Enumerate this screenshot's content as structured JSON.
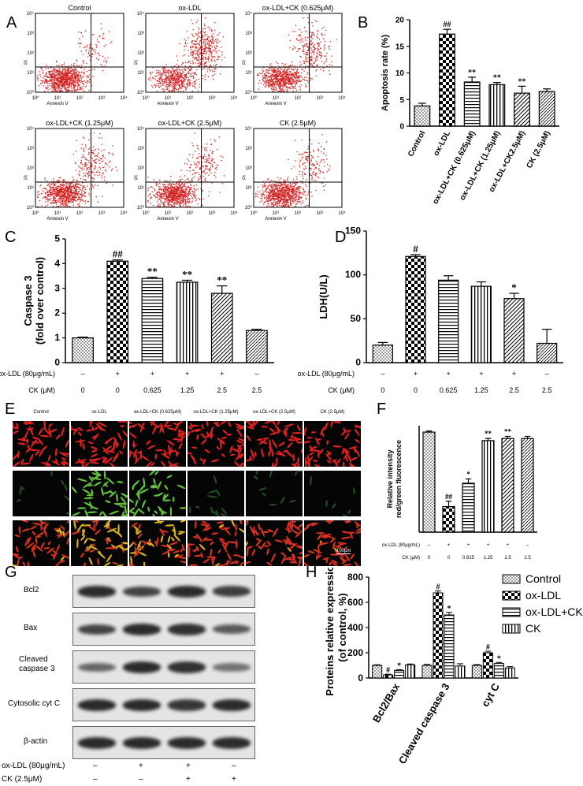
{
  "panels": {
    "A": "A",
    "B": "B",
    "C": "C",
    "D": "D",
    "E": "E",
    "F": "F",
    "G": "G",
    "H": "H"
  },
  "flow": {
    "titles": [
      "Control",
      "ox-LDL",
      "ox-LDL+CK (0.625μM)",
      "ox-LDL+CK (1.25μM)",
      "ox-LDL+CK (2.5μM)",
      "CK (2.5μM)"
    ],
    "xlabel": "Annexin V",
    "ylabel": "PI",
    "ticks": [
      "10⁰",
      "10¹",
      "10²",
      "10³",
      "10⁴"
    ],
    "point_color": "#d42020"
  },
  "chart_data": [
    {
      "type": "bar",
      "panel": "B",
      "categories": [
        "Control",
        "ox-LDL",
        "ox-LDL+CK (0.625μM)",
        "ox-LDL+CK (1.25μM)",
        "ox-LDL+CK2.5μM)",
        "CK (2.5μM)"
      ],
      "values": [
        3.8,
        17.3,
        8.3,
        7.8,
        6.2,
        6.5
      ],
      "errors": [
        0.5,
        0.9,
        0.9,
        0.4,
        1.3,
        0.5
      ],
      "annotations": [
        "",
        "##",
        "**",
        "**",
        "**",
        ""
      ],
      "ylabel": "Apoptosis rate (%)",
      "ylim": [
        0,
        20
      ],
      "yticks": [
        "0",
        "5",
        "10",
        "15",
        "20"
      ]
    },
    {
      "type": "bar",
      "panel": "C",
      "categories": [
        "1",
        "2",
        "3",
        "4",
        "5",
        "6"
      ],
      "values": [
        1.0,
        4.1,
        3.4,
        3.25,
        2.8,
        1.3
      ],
      "errors": [
        0.03,
        0.05,
        0.05,
        0.08,
        0.3,
        0.05
      ],
      "annotations": [
        "",
        "##",
        "**",
        "**",
        "**",
        ""
      ],
      "ylabel": "Caspase 3",
      "ylabel2": "(fold over control)",
      "ylim": [
        0,
        5
      ],
      "yticks": [
        "0",
        "1",
        "2",
        "3",
        "4",
        "5"
      ],
      "row1_label": "ox-LDL (80μg/mL)",
      "row1": [
        "–",
        "+",
        "+",
        "+",
        "+",
        "–"
      ],
      "row2_label": "CK (μM)",
      "row2": [
        "0",
        "0",
        "0.625",
        "1.25",
        "2.5",
        "2.5"
      ]
    },
    {
      "type": "bar",
      "panel": "D",
      "categories": [
        "1",
        "2",
        "3",
        "4",
        "5",
        "6"
      ],
      "values": [
        20,
        121,
        94,
        87,
        73,
        22
      ],
      "errors": [
        3,
        2,
        5,
        5,
        6,
        16
      ],
      "annotations": [
        "",
        "#",
        "",
        "",
        "*",
        ""
      ],
      "ylabel": "LDH(U/L)",
      "ylim": [
        0,
        150
      ],
      "yticks": [
        "0",
        "50",
        "100",
        "150"
      ],
      "row1_label": "ox-LDL (80μg/mL)",
      "row1": [
        "–",
        "+",
        "+",
        "+",
        "+",
        "–"
      ],
      "row2_label": "CK (μM)",
      "row2": [
        "0",
        "0",
        "0.625",
        "1.25",
        "2.5",
        "2.5"
      ]
    },
    {
      "type": "bar",
      "panel": "F",
      "categories": [
        "1",
        "2",
        "3",
        "4",
        "5",
        "6"
      ],
      "values": [
        4.7,
        1.2,
        2.3,
        4.3,
        4.4,
        4.4
      ],
      "errors": [
        0.05,
        0.25,
        0.2,
        0.1,
        0.1,
        0.1
      ],
      "annotations": [
        "",
        "##",
        "*",
        "**",
        "**",
        ""
      ],
      "ylabel": "Relative intensity",
      "ylabel2": "red/green fluorescence",
      "ylim": [
        0,
        5
      ],
      "row1_label": "ox-LDL (80μg/mL)",
      "row1": [
        "–",
        "+",
        "+",
        "+",
        "+",
        "–"
      ],
      "row2_label": "CK (μM)",
      "row2": [
        "0",
        "0",
        "0.625",
        "1.25",
        "2.5",
        "2.5"
      ]
    },
    {
      "type": "bar",
      "panel": "H",
      "categories": [
        "Bcl2/Bax",
        "Cleaved caspase 3",
        "cyt C"
      ],
      "series": [
        {
          "name": "Control",
          "values": [
            100,
            100,
            100
          ]
        },
        {
          "name": "ox-LDL",
          "values": [
            25,
            675,
            200
          ]
        },
        {
          "name": "ox-LDL+CK",
          "values": [
            60,
            500,
            115
          ]
        },
        {
          "name": "CK",
          "values": [
            105,
            95,
            80
          ]
        }
      ],
      "errors": [
        [
          5,
          8,
          6
        ],
        [
          5,
          15,
          12
        ],
        [
          6,
          20,
          8
        ],
        [
          6,
          18,
          10
        ]
      ],
      "annotations": [
        [
          "",
          "",
          ""
        ],
        [
          "#",
          "#",
          "#"
        ],
        [
          "*",
          "*",
          "*"
        ],
        [
          "",
          "",
          ""
        ]
      ],
      "ylabel": "Proteins relative expression",
      "ylabel2": "(of control, %)",
      "ylim": [
        0,
        800
      ],
      "yticks": [
        "0",
        "200",
        "400",
        "600",
        "800"
      ],
      "legend": "top-right"
    }
  ],
  "microscopy": {
    "titles": [
      "Control",
      "ox-LDL",
      "ox-LDL+CK (0.625μM)",
      "ox-LDL+CK (1.25μM)",
      "ox-LDL+CK (2.5μM)",
      "CK (2.5μM)"
    ],
    "scale": "100μm"
  },
  "western": {
    "rows": [
      "Bcl2",
      "Bax",
      "Cleaved\ncaspase 3",
      "Cytosolic cyt C",
      "β-actin"
    ],
    "row1_label": "ox-LDL (80μg/mL)",
    "row1": [
      "–",
      "+",
      "+",
      "–"
    ],
    "row2_label": "CK (2.5μM)",
    "row2": [
      "–",
      "–",
      "+",
      "+"
    ]
  }
}
